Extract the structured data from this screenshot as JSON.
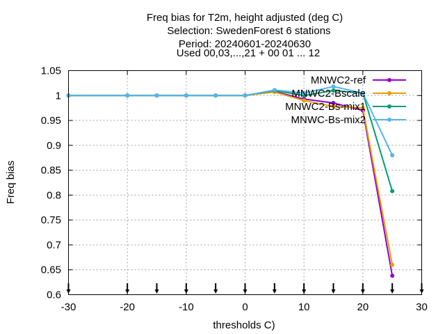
{
  "chart_data": {
    "type": "line",
    "title_lines": [
      "Freq bias  for T2m, height adjusted (deg C)",
      "Selection: SwedenForest      6 stations",
      "Period: 20240601-20240630",
      "Used 00,03,...,21 + 00 01 ... 12"
    ],
    "xlabel": "thresholds C)",
    "ylabel": "Freq bias",
    "xlim": [
      -30,
      30
    ],
    "ylim": [
      0.6,
      1.05
    ],
    "xticks": [
      -30,
      -20,
      -10,
      0,
      10,
      20,
      30
    ],
    "yticks": [
      0.6,
      0.65,
      0.7,
      0.75,
      0.8,
      0.85,
      0.9,
      0.95,
      1,
      1.05
    ],
    "xtick_labels": [
      "-30",
      "-20",
      "-10",
      "0",
      "10",
      "20",
      "30"
    ],
    "ytick_labels": [
      "0.6",
      "0.65",
      "0.7",
      "0.75",
      "0.8",
      "0.85",
      "0.9",
      "0.95",
      "1",
      "1.05"
    ],
    "grid": true,
    "legend_position": "top-right",
    "x": [
      -30,
      -20,
      -15,
      -10,
      -5,
      0,
      5,
      10,
      15,
      20,
      25
    ],
    "series": [
      {
        "name": "MNWC2-ref",
        "color": "#9400d3",
        "values": [
          1,
          1,
          1,
          1,
          1,
          1,
          1.008,
          0.993,
          0.985,
          0.97,
          0.638
        ]
      },
      {
        "name": "MNWC2-Bscale",
        "color": "#e69f00",
        "values": [
          1,
          1,
          1,
          1,
          1,
          1,
          1.007,
          0.99,
          0.978,
          0.975,
          0.66
        ]
      },
      {
        "name": "MNWC2-Bs-mix1",
        "color": "#009e73",
        "values": [
          1,
          1,
          1,
          1,
          1,
          1,
          1.01,
          1.0,
          1.01,
          1.005,
          0.808
        ]
      },
      {
        "name": "MNWC-Bs-mix2",
        "color": "#56b4e9",
        "values": [
          1,
          1,
          1,
          1,
          1,
          1,
          1.011,
          1.005,
          1.018,
          1.005,
          0.88
        ]
      }
    ],
    "observation_markers_x": [
      -30,
      -20,
      -15,
      -10,
      -5,
      0,
      5,
      10,
      15,
      20,
      25,
      30
    ]
  }
}
